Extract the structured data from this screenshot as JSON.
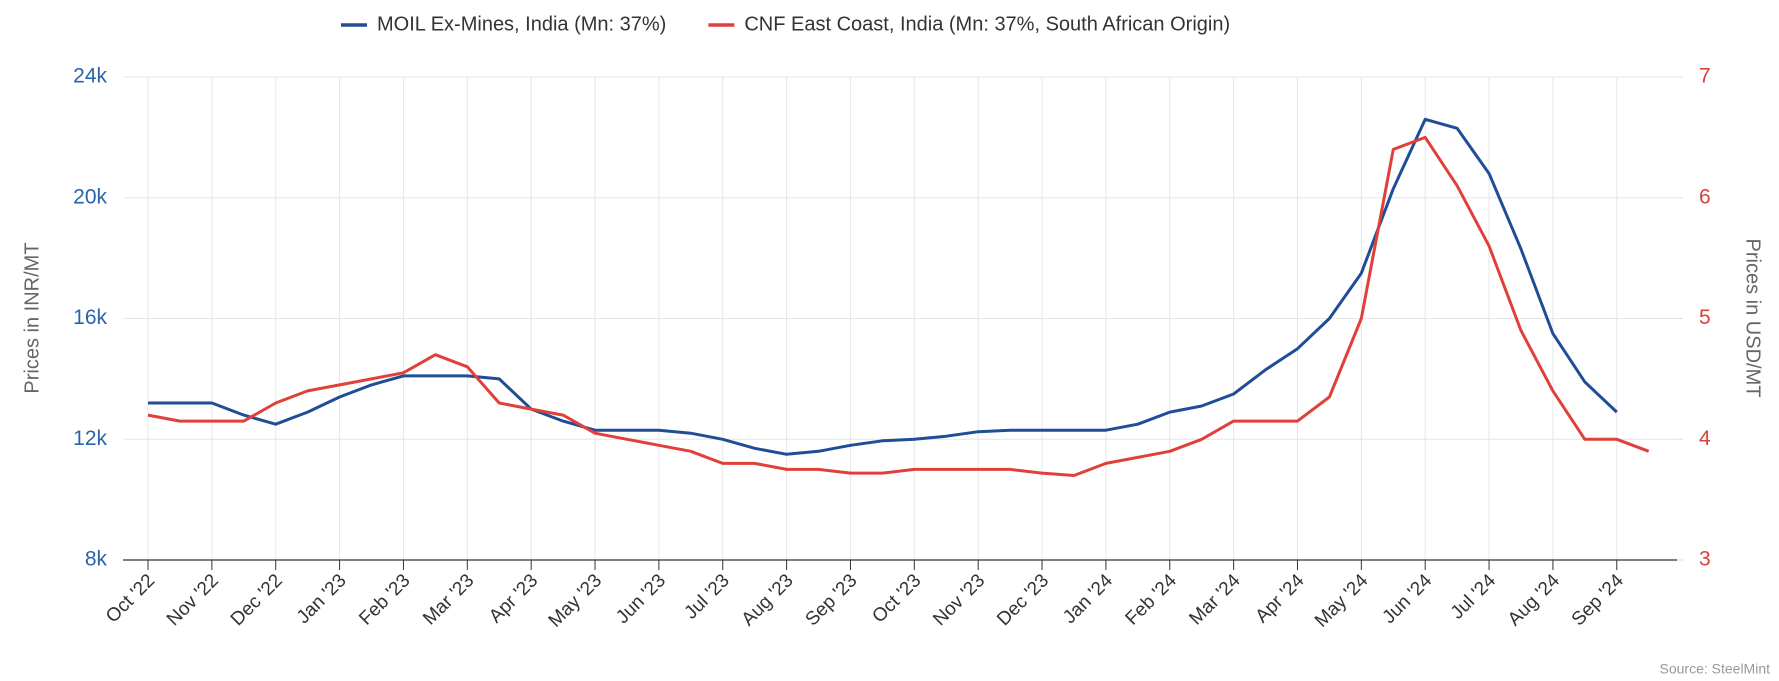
{
  "chart_data": {
    "type": "line",
    "categories": [
      "Oct '22",
      null,
      "Nov '22",
      null,
      "Dec '22",
      null,
      "Jan '23",
      null,
      "Feb '23",
      null,
      "Mar '23",
      null,
      "Apr '23",
      null,
      "May '23",
      null,
      "Jun '23",
      null,
      "Jul '23",
      null,
      "Aug '23",
      null,
      "Sep '23",
      null,
      "Oct '23",
      null,
      "Nov '23",
      null,
      "Dec '23",
      null,
      "Jan '24",
      null,
      "Feb '24",
      null,
      "Mar '24",
      null,
      "Apr '24",
      null,
      "May '24",
      null,
      "Jun '24",
      null,
      "Jul '24",
      null,
      "Aug '24",
      null,
      "Sep '24",
      null
    ],
    "series": [
      {
        "name": "MOIL Ex-Mines, India (Mn: 37%)",
        "color": "#1f4e96",
        "axis": "y",
        "values": [
          13200,
          13200,
          13200,
          12800,
          12500,
          12900,
          13400,
          13800,
          14100,
          14100,
          14100,
          14000,
          13000,
          12600,
          12300,
          12300,
          12300,
          12200,
          12000,
          11700,
          11500,
          11600,
          11800,
          11950,
          12000,
          12100,
          12250,
          12300,
          12300,
          12300,
          12300,
          12500,
          12900,
          13100,
          13500,
          14300,
          15000,
          16000,
          17500,
          20300,
          22600,
          22300,
          20800,
          18300,
          15500,
          13900,
          12900,
          null
        ]
      },
      {
        "name": "CNF East Coast, India (Mn: 37%, South African Origin)",
        "color": "#e0403a",
        "axis": "y2",
        "values": [
          4.2,
          4.15,
          4.15,
          4.15,
          4.3,
          4.4,
          4.45,
          4.5,
          4.55,
          4.7,
          4.6,
          4.3,
          4.25,
          4.2,
          4.05,
          4.0,
          3.95,
          3.9,
          3.8,
          3.8,
          3.75,
          3.75,
          3.72,
          3.72,
          3.75,
          3.75,
          3.75,
          3.75,
          3.72,
          3.7,
          3.8,
          3.85,
          3.9,
          4.0,
          4.15,
          4.15,
          4.15,
          4.35,
          5.0,
          6.4,
          6.5,
          6.1,
          5.6,
          4.9,
          4.4,
          4.0,
          4.0,
          3.9
        ]
      }
    ],
    "y_label": "Prices in INR/MT",
    "y2_label": "Prices in USD/MT",
    "ylim": [
      8000,
      24000
    ],
    "yticks": [
      {
        "value": 8000,
        "label": "8k"
      },
      {
        "value": 12000,
        "label": "12k"
      },
      {
        "value": 16000,
        "label": "16k"
      },
      {
        "value": 20000,
        "label": "20k"
      },
      {
        "value": 24000,
        "label": "24k"
      }
    ],
    "y2lim": [
      3,
      7
    ],
    "y2ticks": [
      3,
      4,
      5,
      6,
      7
    ],
    "ytick_color": "#2a64a8",
    "y2tick_color": "#d9413a",
    "grid": true,
    "legend": "top",
    "source": "Source: SteelMint"
  }
}
